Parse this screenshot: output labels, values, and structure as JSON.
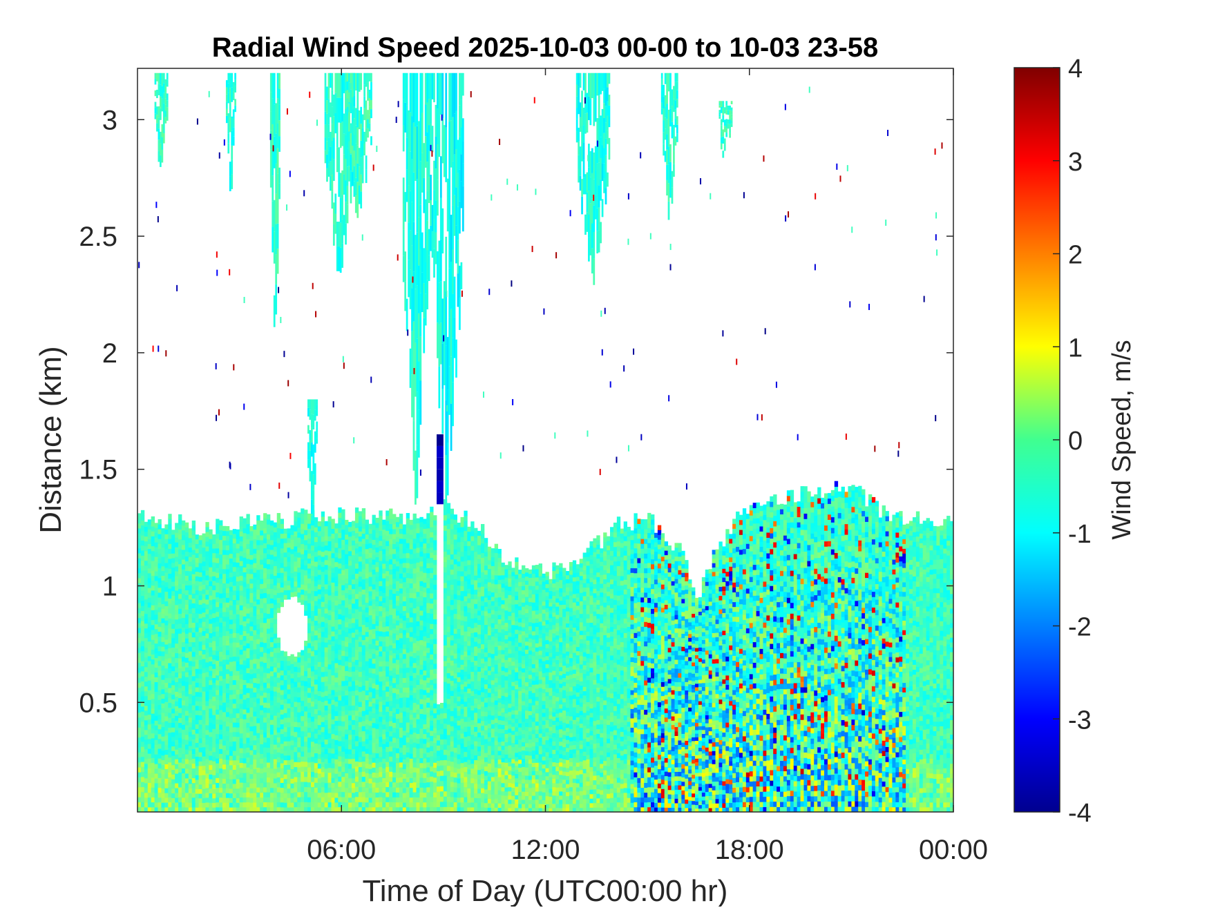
{
  "chart_data": {
    "type": "heatmap",
    "title": "Radial Wind Speed 2025-10-03 00-00 to 10-03 23-58",
    "xlabel": "Time of Day (UTC00:00 hr)",
    "ylabel": "Distance (km)",
    "colorbar_label": "Wind Speed, m/s",
    "colormap": "jet",
    "colors": {
      "no_data": "#ffffff",
      "axes": "#262626",
      "background_green": "#4ef09a"
    },
    "xlim_hours": [
      0,
      24
    ],
    "ylim_km": [
      0.03,
      3.22
    ],
    "clim": [
      -4,
      4
    ],
    "x_ticks": [
      {
        "value": 6,
        "label": "06:00"
      },
      {
        "value": 12,
        "label": "12:00"
      },
      {
        "value": 18,
        "label": "18:00"
      },
      {
        "value": 24,
        "label": "00:00"
      }
    ],
    "y_ticks": [
      {
        "value": 0.5,
        "label": "0.5"
      },
      {
        "value": 1.0,
        "label": "1"
      },
      {
        "value": 1.5,
        "label": "1.5"
      },
      {
        "value": 2.0,
        "label": "2"
      },
      {
        "value": 2.5,
        "label": "2.5"
      },
      {
        "value": 3.0,
        "label": "3"
      }
    ],
    "colorbar_ticks": [
      {
        "value": 4,
        "label": "4"
      },
      {
        "value": 3,
        "label": "3"
      },
      {
        "value": 2,
        "label": "2"
      },
      {
        "value": 1,
        "label": "1"
      },
      {
        "value": 0,
        "label": "0"
      },
      {
        "value": -1,
        "label": "-1"
      },
      {
        "value": -2,
        "label": "-2"
      },
      {
        "value": -3,
        "label": "-3"
      },
      {
        "value": -4,
        "label": "-4"
      }
    ],
    "boundary_layer_top_km": {
      "hours": [
        0,
        1,
        2,
        3,
        4,
        5,
        6,
        7,
        8,
        9,
        10,
        11,
        12,
        13,
        14,
        15,
        16,
        16.5,
        17,
        18,
        19,
        20,
        21,
        22,
        23,
        24
      ],
      "values": [
        1.3,
        1.28,
        1.25,
        1.28,
        1.27,
        1.3,
        1.3,
        1.3,
        1.3,
        1.35,
        1.25,
        1.1,
        1.05,
        1.1,
        1.25,
        1.3,
        1.15,
        0.95,
        1.15,
        1.35,
        1.38,
        1.4,
        1.42,
        1.3,
        1.28,
        1.3
      ]
    },
    "cloud_plumes": [
      {
        "hours": [
          0.5,
          0.9
        ],
        "top_km": 3.2,
        "bottom_km": 2.8,
        "mean_ms": -0.6
      },
      {
        "hours": [
          2.6,
          2.9
        ],
        "top_km": 3.2,
        "bottom_km": 2.7,
        "mean_ms": -0.7
      },
      {
        "hours": [
          3.9,
          4.2
        ],
        "top_km": 3.2,
        "bottom_km": 2.0,
        "mean_ms": -0.6
      },
      {
        "hours": [
          5.0,
          5.3
        ],
        "top_km": 1.8,
        "bottom_km": 1.3,
        "mean_ms": -0.8
      },
      {
        "hours": [
          5.5,
          6.4
        ],
        "top_km": 3.2,
        "bottom_km": 2.3,
        "mean_ms": -0.7
      },
      {
        "hours": [
          6.1,
          6.9
        ],
        "top_km": 3.2,
        "bottom_km": 2.6,
        "mean_ms": -0.6
      },
      {
        "hours": [
          7.8,
          8.6
        ],
        "top_km": 3.2,
        "bottom_km": 1.3,
        "mean_ms": -0.8
      },
      {
        "hours": [
          8.6,
          9.6
        ],
        "top_km": 3.2,
        "bottom_km": 1.3,
        "mean_ms": -0.9
      },
      {
        "hours": [
          12.9,
          13.9
        ],
        "top_km": 3.2,
        "bottom_km": 2.3,
        "mean_ms": -0.8
      },
      {
        "hours": [
          15.4,
          15.9
        ],
        "top_km": 3.2,
        "bottom_km": 2.6,
        "mean_ms": -0.7
      },
      {
        "hours": [
          17.1,
          17.5
        ],
        "top_km": 3.08,
        "bottom_km": 2.85,
        "mean_ms": -0.6
      }
    ],
    "data_gaps": [
      {
        "hour_range": [
          8.85,
          8.97
        ],
        "km_range": [
          0.5,
          1.45
        ],
        "shape": "column"
      },
      {
        "hour_range": [
          4.1,
          5.0
        ],
        "km_range": [
          0.7,
          0.95
        ],
        "shape": "blob"
      }
    ],
    "strong_negative_band": {
      "hours": [
        8.8,
        9.0
      ],
      "km_range": [
        1.35,
        1.65
      ],
      "mean_ms": -3.6
    },
    "convective_period": {
      "hours": [
        14.5,
        22.5
      ],
      "km_range": [
        0.03,
        1.4
      ],
      "range_ms": [
        -3.5,
        3.5
      ]
    }
  }
}
